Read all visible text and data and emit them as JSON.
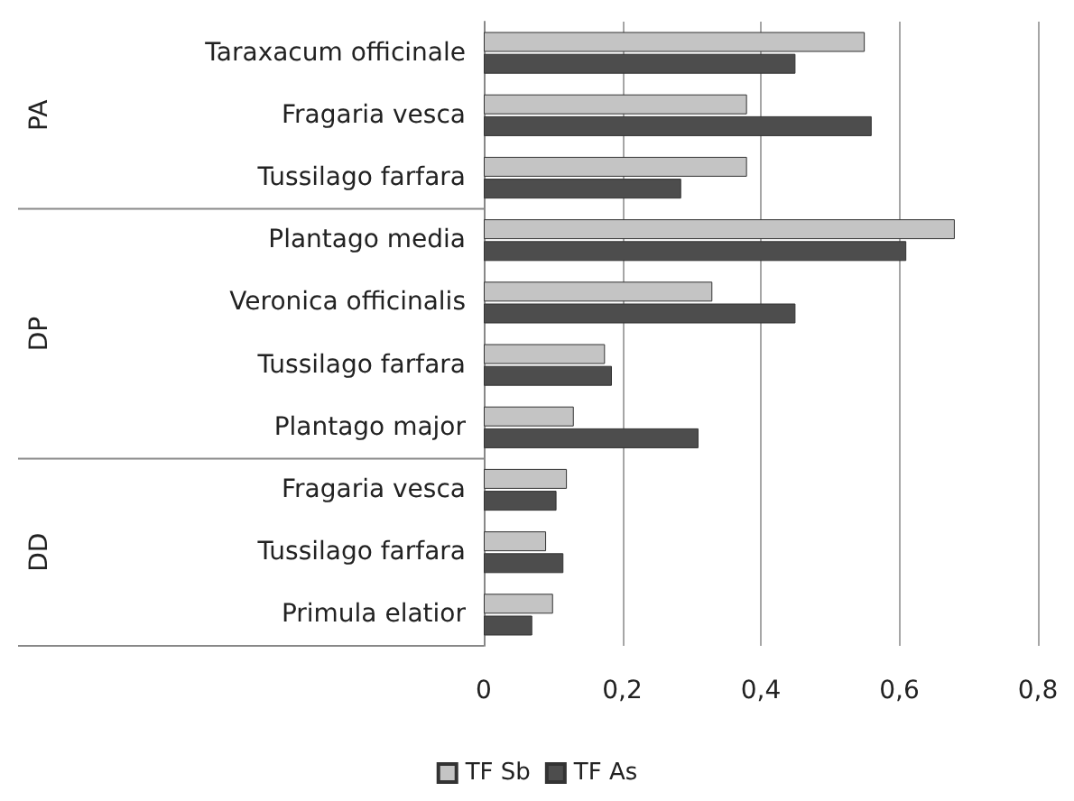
{
  "chart_data": {
    "type": "bar",
    "orientation": "horizontal",
    "categories": [
      "Taraxacum officinale",
      "Fragaria vesca",
      "Tussilago farfara",
      "Plantago media",
      "Veronica officinalis",
      "Tussilago farfara",
      "Plantago major",
      "Fragaria vesca",
      "Tussilago farfara",
      "Primula elatior"
    ],
    "series": [
      {
        "name": "TF Sb",
        "color": "#c4c4c4",
        "values": [
          0.55,
          0.38,
          0.38,
          0.68,
          0.33,
          0.175,
          0.13,
          0.12,
          0.09,
          0.1
        ]
      },
      {
        "name": "TF As",
        "color": "#4d4d4d",
        "values": [
          0.45,
          0.56,
          0.285,
          0.61,
          0.45,
          0.185,
          0.31,
          0.105,
          0.115,
          0.07
        ]
      }
    ],
    "xlim": [
      0,
      0.8
    ],
    "xticks": [
      0,
      {
        "value": 0.2,
        "label": "0,2"
      },
      {
        "value": 0.4,
        "label": "0,4"
      },
      {
        "value": 0.6,
        "label": "0,6"
      },
      {
        "value": 0.8,
        "label": "0,8"
      }
    ],
    "grid": "x",
    "legend": "bottom",
    "annotations": [
      "PA",
      "DP",
      "DD"
    ]
  }
}
